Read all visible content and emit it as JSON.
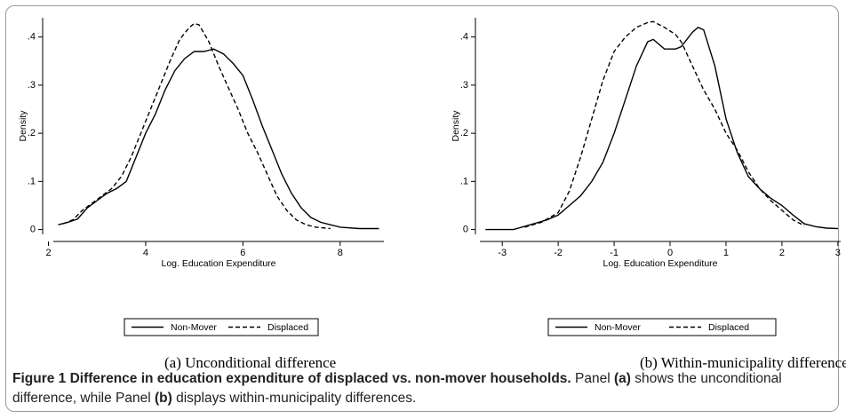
{
  "chart_data": [
    {
      "type": "line",
      "subcaption": "(a)  Unconditional difference",
      "ylabel": "Density",
      "xlabel": "Log. Education Expenditure",
      "xlim": [
        2.1,
        8.9
      ],
      "xticks": [
        2,
        4,
        6,
        8
      ],
      "ylim": [
        -0.01,
        0.44
      ],
      "yticks": [
        0,
        {
          "value": 0.1,
          "label": ".1"
        },
        {
          "value": 0.2,
          "label": ".2"
        },
        {
          "value": 0.3,
          "label": ".3"
        },
        {
          "value": 0.4,
          "label": ".4"
        }
      ],
      "series": [
        {
          "name": "Non-Mover",
          "color": "#000000",
          "style": "solid",
          "x": [
            2.2,
            2.4,
            2.6,
            2.8,
            3.0,
            3.2,
            3.4,
            3.6,
            3.8,
            4.0,
            4.2,
            4.4,
            4.6,
            4.8,
            5.0,
            5.2,
            5.4,
            5.6,
            5.8,
            6.0,
            6.2,
            6.4,
            6.6,
            6.8,
            7.0,
            7.2,
            7.4,
            7.6,
            7.8,
            8.0,
            8.4,
            8.8
          ],
          "values": [
            0.01,
            0.015,
            0.022,
            0.045,
            0.06,
            0.075,
            0.085,
            0.1,
            0.15,
            0.2,
            0.24,
            0.29,
            0.33,
            0.355,
            0.37,
            0.37,
            0.375,
            0.365,
            0.345,
            0.32,
            0.27,
            0.215,
            0.165,
            0.115,
            0.075,
            0.045,
            0.025,
            0.015,
            0.01,
            0.005,
            0.002,
            0.002
          ]
        },
        {
          "name": "Displaced",
          "color": "#000000",
          "style": "dashed",
          "x": [
            2.3,
            2.5,
            2.7,
            2.9,
            3.1,
            3.3,
            3.5,
            3.7,
            3.9,
            4.1,
            4.3,
            4.5,
            4.7,
            4.9,
            5.0,
            5.1,
            5.3,
            5.5,
            5.7,
            5.9,
            6.1,
            6.3,
            6.5,
            6.7,
            6.9,
            7.1,
            7.3,
            7.5,
            7.8
          ],
          "values": [
            0.012,
            0.02,
            0.04,
            0.055,
            0.07,
            0.085,
            0.11,
            0.15,
            0.2,
            0.25,
            0.3,
            0.35,
            0.395,
            0.42,
            0.428,
            0.425,
            0.39,
            0.34,
            0.295,
            0.25,
            0.2,
            0.16,
            0.115,
            0.07,
            0.04,
            0.02,
            0.01,
            0.005,
            0.002
          ]
        }
      ]
    },
    {
      "type": "line",
      "subcaption": "(b)  Within-municipality difference",
      "ylabel": "Density",
      "xlabel": "Log. Education Expenditure",
      "xlim": [
        -3.4,
        3.05
      ],
      "xticks": [
        -3,
        -2,
        -1,
        0,
        1,
        2,
        3
      ],
      "ylim": [
        -0.01,
        0.44
      ],
      "yticks": [
        0,
        {
          "value": 0.1,
          "label": ".1"
        },
        {
          "value": 0.2,
          "label": ".2"
        },
        {
          "value": 0.3,
          "label": ".3"
        },
        {
          "value": 0.4,
          "label": ".4"
        }
      ],
      "series": [
        {
          "name": "Non-Mover",
          "color": "#000000",
          "style": "solid",
          "x": [
            -3.3,
            -2.8,
            -2.5,
            -2.2,
            -2.0,
            -1.8,
            -1.6,
            -1.4,
            -1.2,
            -1.0,
            -0.8,
            -0.6,
            -0.4,
            -0.3,
            -0.1,
            0.1,
            0.2,
            0.4,
            0.5,
            0.6,
            0.8,
            1.0,
            1.2,
            1.4,
            1.6,
            1.8,
            2.0,
            2.2,
            2.4,
            2.6,
            2.8,
            3.0
          ],
          "values": [
            0,
            0,
            0.01,
            0.02,
            0.03,
            0.05,
            0.07,
            0.1,
            0.14,
            0.2,
            0.27,
            0.34,
            0.39,
            0.395,
            0.375,
            0.375,
            0.38,
            0.41,
            0.42,
            0.415,
            0.34,
            0.23,
            0.16,
            0.11,
            0.085,
            0.065,
            0.05,
            0.03,
            0.012,
            0.006,
            0.003,
            0.002
          ]
        },
        {
          "name": "Displaced",
          "color": "#000000",
          "style": "dashed",
          "x": [
            -2.6,
            -2.3,
            -2.0,
            -1.8,
            -1.6,
            -1.4,
            -1.2,
            -1.0,
            -0.8,
            -0.6,
            -0.4,
            -0.3,
            -0.1,
            0.1,
            0.2,
            0.4,
            0.6,
            0.8,
            1.0,
            1.2,
            1.4,
            1.6,
            1.8,
            2.0,
            2.2,
            2.4
          ],
          "values": [
            0.005,
            0.015,
            0.035,
            0.08,
            0.15,
            0.23,
            0.31,
            0.37,
            0.4,
            0.42,
            0.43,
            0.432,
            0.42,
            0.405,
            0.39,
            0.34,
            0.29,
            0.25,
            0.2,
            0.165,
            0.12,
            0.085,
            0.06,
            0.04,
            0.02,
            0.008
          ]
        }
      ]
    }
  ],
  "caption": {
    "title": "Figure 1 Difference in education expenditure of displaced vs. non-mover households.",
    "text": [
      "Panel ",
      "(a)",
      " shows the unconditional difference, while Panel ",
      "(b)",
      " displays within-municipality differences."
    ]
  }
}
